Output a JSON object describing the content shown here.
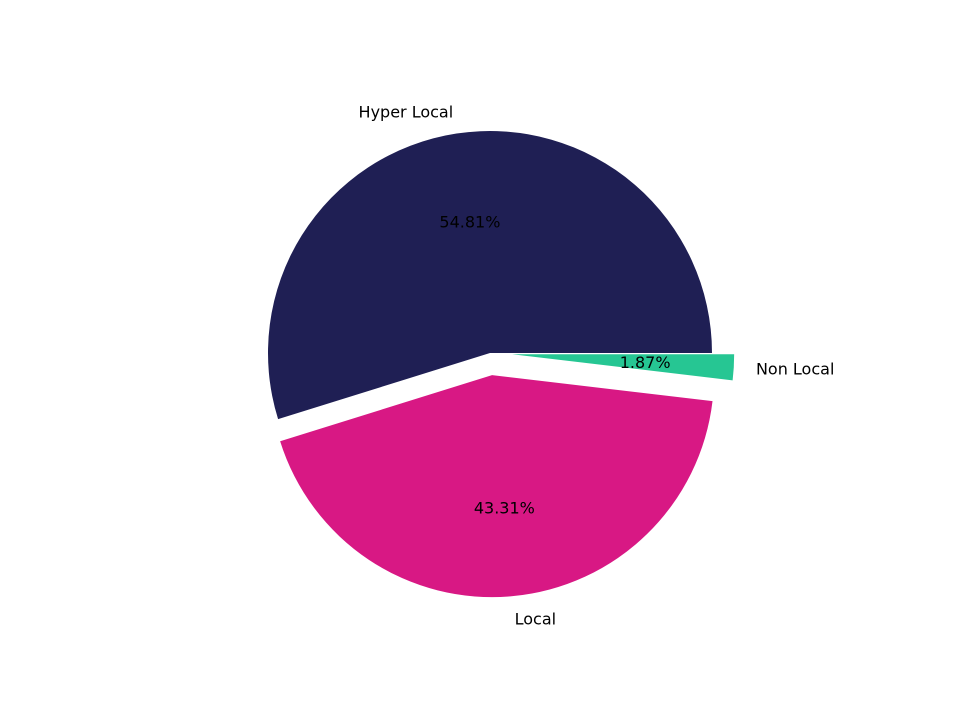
{
  "chart_data": {
    "type": "pie",
    "title": "",
    "categories": [
      "Hyper Local",
      "Local",
      "Non Local"
    ],
    "values": [
      54.81,
      43.31,
      1.87
    ],
    "colors": [
      "#1f1f54",
      "#d81884",
      "#26c693"
    ],
    "explode": [
      0,
      0.1,
      0.1
    ],
    "start_angle": 0,
    "autopct_labels": [
      "54.81%",
      "43.31%",
      "1.87%"
    ],
    "legend": false
  }
}
